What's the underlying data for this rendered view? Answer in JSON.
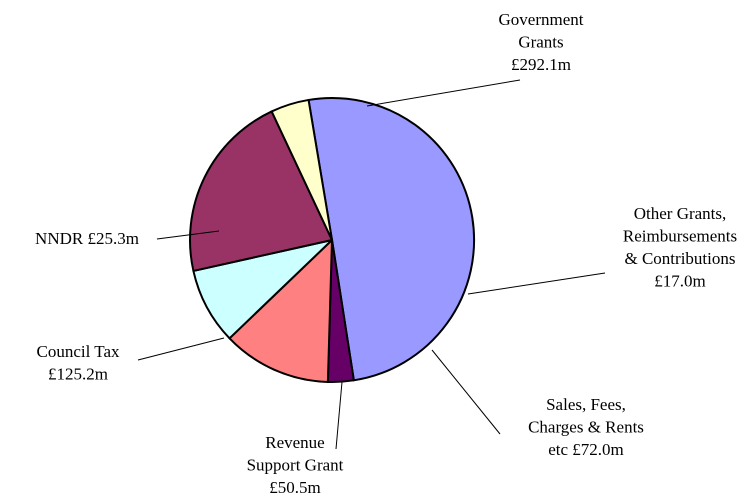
{
  "chart_data": {
    "type": "pie",
    "title": "",
    "slices": [
      {
        "label": [
          "Government",
          "Grants",
          "£292.1m"
        ],
        "value": 292.1,
        "color": "#9999ff"
      },
      {
        "label": [
          "Other Grants,",
          "Reimbursements",
          "& Contributions",
          "£17.0m"
        ],
        "value": 17.0,
        "color": "#660066"
      },
      {
        "label": [
          "Sales, Fees,",
          "Charges & Rents",
          "etc £72.0m"
        ],
        "value": 72.0,
        "color": "#ff8080"
      },
      {
        "label": [
          "Revenue",
          "Support Grant",
          "£50.5m"
        ],
        "value": 50.5,
        "color": "#ccffff"
      },
      {
        "label": [
          "Council Tax",
          "£125.2m"
        ],
        "value": 125.2,
        "color": "#993366"
      },
      {
        "label": [
          "NNDR £25.3m"
        ],
        "value": 25.3,
        "color": "#ffffcc"
      }
    ]
  }
}
